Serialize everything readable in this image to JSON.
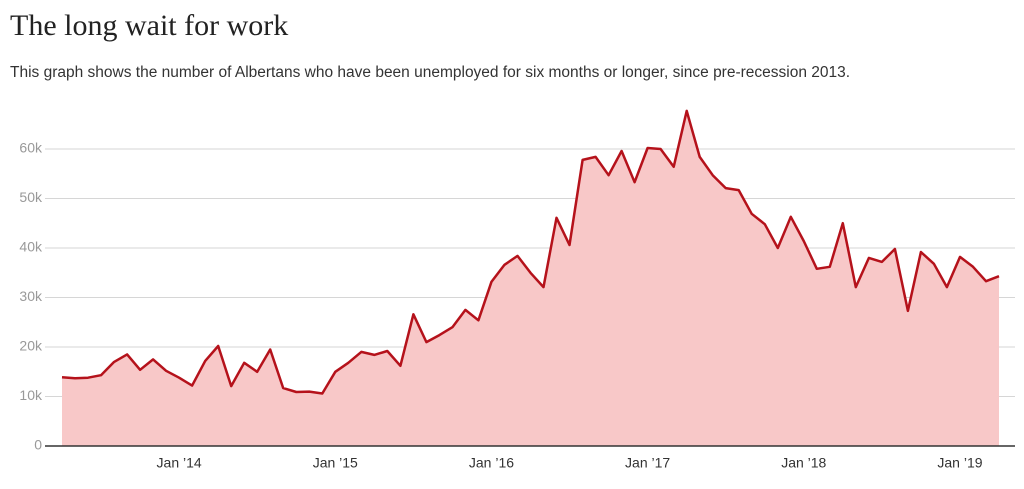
{
  "chart_data": {
    "type": "area",
    "title": "The long wait for work",
    "subtitle": "This graph shows the number of Albertans who have been unemployed for six months or longer, since pre-recession 2013.",
    "categories": [
      null,
      null,
      null,
      null,
      null,
      null,
      null,
      null,
      null,
      "Jan ’14",
      null,
      null,
      null,
      null,
      null,
      null,
      null,
      null,
      null,
      null,
      null,
      "Jan ’15",
      null,
      null,
      null,
      null,
      null,
      null,
      null,
      null,
      null,
      null,
      null,
      "Jan ’16",
      null,
      null,
      null,
      null,
      null,
      null,
      null,
      null,
      null,
      null,
      null,
      "Jan ’17",
      null,
      null,
      null,
      null,
      null,
      null,
      null,
      null,
      null,
      null,
      null,
      "Jan ’18",
      null,
      null,
      null,
      null,
      null,
      null,
      null,
      null,
      null,
      null,
      null,
      "Jan ’19",
      null,
      null,
      null
    ],
    "values": [
      13900,
      13700,
      13800,
      14300,
      17000,
      18500,
      15400,
      17500,
      15200,
      13800,
      12200,
      17200,
      20200,
      12100,
      16800,
      15000,
      19500,
      11700,
      10900,
      11000,
      10600,
      15000,
      16800,
      19000,
      18400,
      19200,
      16200,
      26600,
      21000,
      22400,
      24000,
      27500,
      25400,
      33200,
      36600,
      38400,
      35000,
      32100,
      46100,
      40600,
      57800,
      58400,
      54700,
      59600,
      53300,
      60200,
      60000,
      56400,
      67700,
      58400,
      54700,
      52100,
      51700,
      46900,
      44800,
      40000,
      46300,
      41400,
      35800,
      36200,
      45000,
      32100,
      38000,
      37200,
      39800,
      27300,
      39200,
      36800,
      32100,
      38200,
      36200,
      33300,
      34300
    ],
    "color": "#b5121b",
    "area_color": "#f8c8c8",
    "ylim": [
      0,
      70000
    ],
    "yticks": [
      0,
      {
        "value": 10000,
        "label": "10k"
      },
      {
        "value": 20000,
        "label": "20k"
      },
      {
        "value": 30000,
        "label": "30k"
      },
      {
        "value": 40000,
        "label": "40k"
      },
      {
        "value": 50000,
        "label": "50k"
      },
      {
        "value": 60000,
        "label": "60k"
      }
    ],
    "grid": true
  }
}
